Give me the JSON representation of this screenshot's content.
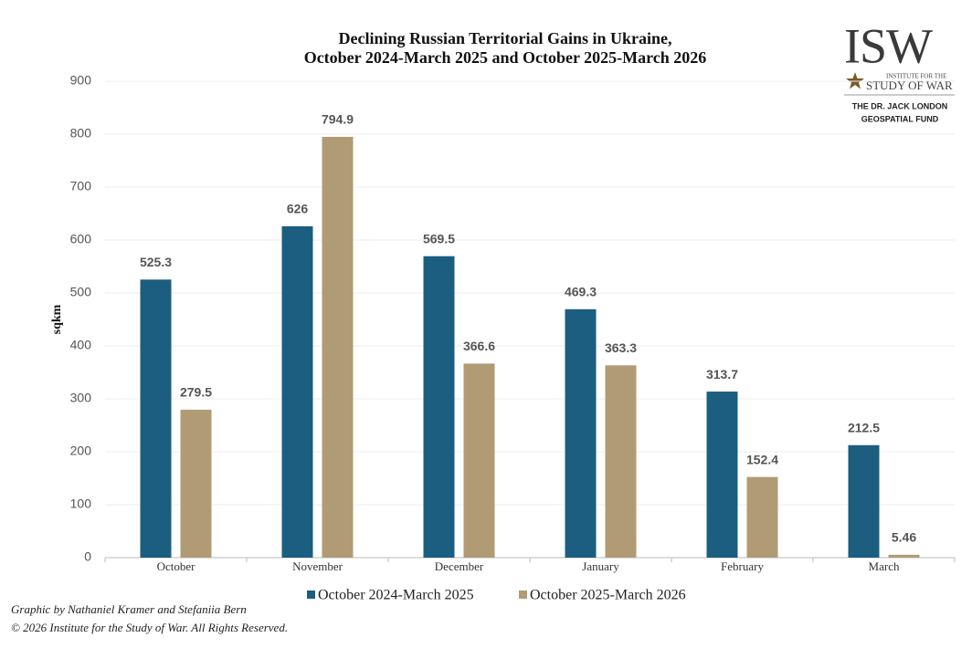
{
  "chart_data": {
    "type": "bar",
    "title": [
      "Declining Russian Territorial Gains in Ukraine,",
      "October 2024-March 2025 and October 2025-March 2026"
    ],
    "ylabel": "sqkm",
    "categories": [
      "October",
      "November",
      "December",
      "January",
      "February",
      "March"
    ],
    "series": [
      {
        "name": "October 2024-March 2025",
        "color": "#1b5e80",
        "values": [
          525.3,
          626,
          569.5,
          469.3,
          313.7,
          212.5
        ]
      },
      {
        "name": "October 2025-March 2026",
        "color": "#b09b74",
        "values": [
          279.5,
          794.9,
          366.6,
          363.3,
          152.4,
          5.46
        ]
      }
    ],
    "ylim": [
      0,
      900
    ],
    "yticks": [
      0,
      100,
      200,
      300,
      400,
      500,
      600,
      700,
      800,
      900
    ],
    "grid": true
  },
  "logo": {
    "mark": "ISW",
    "line1": "INSTITUTE FOR THE",
    "line2": "STUDY OF WAR",
    "fund1": "THE DR. JACK LONDON",
    "fund2": "GEOSPATIAL FUND"
  },
  "credits": [
    "Graphic by Nathaniel Kramer and Stefaniia Bern",
    "© 2026 Institute for the Study of War. All Rights Reserved."
  ]
}
